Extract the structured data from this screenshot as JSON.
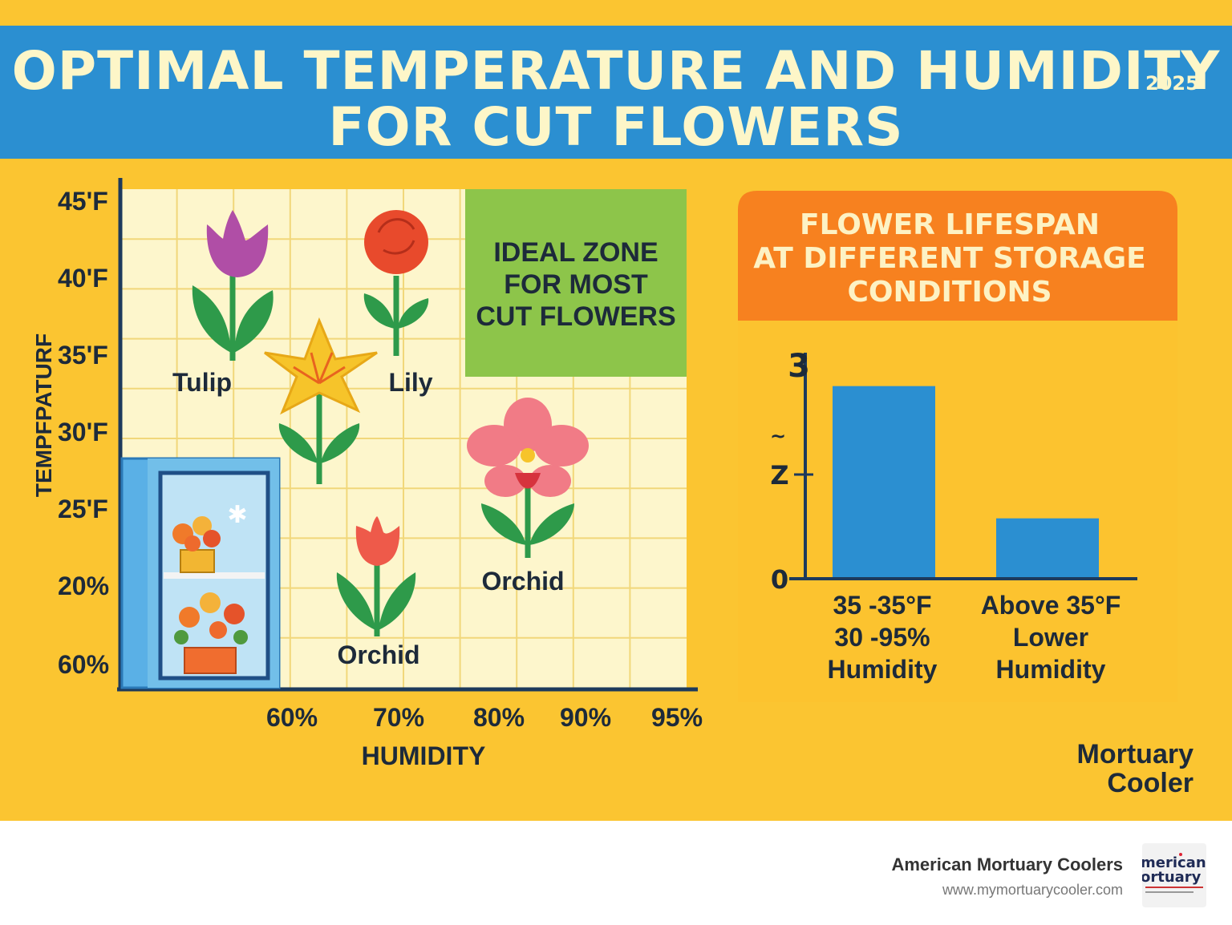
{
  "title": {
    "line1": "OPTIMAL TEMPERATURE AND HUMIDITY",
    "line2": "FOR CUT FLOWERS",
    "year": "2025"
  },
  "colors": {
    "background": "#fbc531",
    "title_band": "#2b8fd1",
    "ideal_zone": "#8dc54a",
    "lifespan_header": "#f7811f",
    "bar": "#2b8fd1",
    "grid_bg": "#fdf6cc"
  },
  "chart_data": [
    {
      "type": "scatter",
      "ylabel": "TEMPFPATURF",
      "xlabel": "HUMIDITY",
      "y_ticks": [
        "45'F",
        "40'F",
        "35'F",
        "30'F",
        "25'F",
        "20%",
        "60%"
      ],
      "x_ticks": [
        "60%",
        "70%",
        "80%",
        "90%",
        "95%"
      ],
      "ideal_zone_label": [
        "IDEAL ZONE",
        "FOR MOST",
        "CUT FLOWERS"
      ],
      "flower_labels": [
        "Tulip",
        "Lily",
        "Orchid",
        "Orchid"
      ],
      "grid": true
    },
    {
      "type": "bar",
      "title": [
        "FLOWER LIFESPAN",
        "AT DIFFERENT STORAGE",
        "CONDITIONS"
      ],
      "y_ticks": [
        "3",
        "~",
        "Z",
        "0"
      ],
      "ylim": [
        0,
        3
      ],
      "categories": [
        [
          "35 -35°F",
          "30 -95%",
          "Humidity"
        ],
        [
          "Above 35°F",
          "Lower",
          "Humidity"
        ]
      ],
      "values": [
        2.6,
        0.8
      ],
      "grid": false
    }
  ],
  "brand": {
    "line1": "Mortuary",
    "line2": "Cooler"
  },
  "footer": {
    "company": "American Mortuary Coolers",
    "url": "www.mymortuarycooler.com",
    "logo_line1": "merican",
    "logo_line2": "ortuary"
  }
}
